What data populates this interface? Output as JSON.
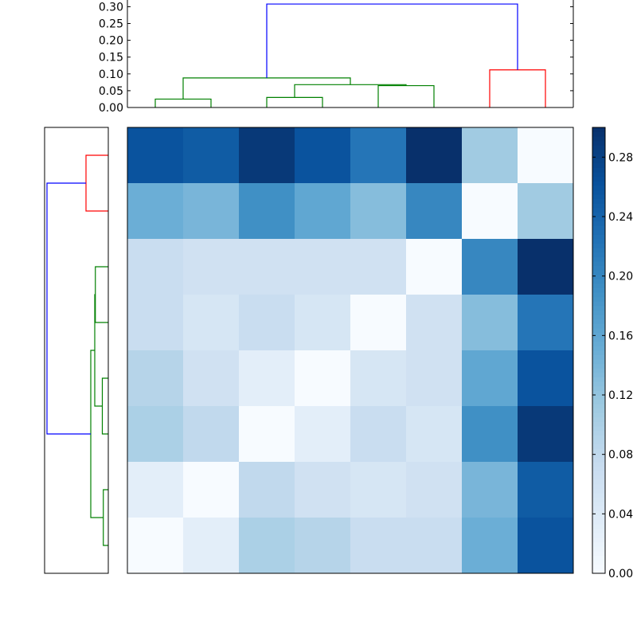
{
  "chart_data": [
    {
      "type": "dendrogram",
      "orientation": "top",
      "yticks": [
        "0.00",
        "0.05",
        "0.10",
        "0.15",
        "0.20",
        "0.25",
        "0.30"
      ],
      "ylim": [
        0,
        0.32
      ],
      "leaf_positions": [
        5,
        15,
        25,
        35,
        45,
        55,
        65,
        75
      ],
      "xlim": [
        0,
        80
      ],
      "links": [
        {
          "x": [
            5,
            5,
            15,
            15
          ],
          "y": [
            0,
            0.025,
            0.025,
            0
          ],
          "color": "#008000"
        },
        {
          "x": [
            25,
            25,
            35,
            35
          ],
          "y": [
            0,
            0.03,
            0.03,
            0
          ],
          "color": "#008000"
        },
        {
          "x": [
            45,
            45,
            55,
            55
          ],
          "y": [
            0,
            0.065,
            0.065,
            0
          ],
          "color": "#008000"
        },
        {
          "x": [
            30,
            30,
            50,
            50
          ],
          "y": [
            0.03,
            0.068,
            0.068,
            0.065
          ],
          "color": "#008000"
        },
        {
          "x": [
            10,
            10,
            40,
            40
          ],
          "y": [
            0.025,
            0.088,
            0.088,
            0.068
          ],
          "color": "#008000"
        },
        {
          "x": [
            65,
            65,
            75,
            75
          ],
          "y": [
            0,
            0.112,
            0.112,
            0
          ],
          "color": "#ff0000"
        },
        {
          "x": [
            25,
            25,
            70,
            70
          ],
          "y": [
            0.088,
            0.308,
            0.308,
            0.112
          ],
          "color": "#0000ff"
        }
      ]
    },
    {
      "type": "dendrogram",
      "orientation": "left",
      "leaf_positions": [
        5,
        15,
        25,
        35,
        45,
        55,
        65,
        75
      ],
      "ylim": [
        0,
        80
      ],
      "xlim": [
        0,
        0.32
      ],
      "links": [
        {
          "y": [
            5,
            5,
            15,
            15
          ],
          "x": [
            0,
            0.025,
            0.025,
            0
          ],
          "color": "#008000"
        },
        {
          "y": [
            25,
            25,
            35,
            35
          ],
          "x": [
            0,
            0.03,
            0.03,
            0
          ],
          "color": "#008000"
        },
        {
          "y": [
            45,
            45,
            55,
            55
          ],
          "x": [
            0,
            0.065,
            0.065,
            0
          ],
          "color": "#008000"
        },
        {
          "y": [
            30,
            30,
            50,
            50
          ],
          "x": [
            0.03,
            0.068,
            0.068,
            0.065
          ],
          "color": "#008000"
        },
        {
          "y": [
            10,
            10,
            40,
            40
          ],
          "x": [
            0.025,
            0.088,
            0.088,
            0.068
          ],
          "color": "#008000"
        },
        {
          "y": [
            65,
            65,
            75,
            75
          ],
          "x": [
            0,
            0.112,
            0.112,
            0
          ],
          "color": "#ff0000"
        },
        {
          "y": [
            25,
            25,
            70,
            70
          ],
          "x": [
            0.088,
            0.308,
            0.308,
            0.112
          ],
          "color": "#0000ff"
        }
      ]
    },
    {
      "type": "heatmap",
      "colormap": "Blues",
      "vmin": 0,
      "vmax": 0.3,
      "values": [
        [
          0.26,
          0.25,
          0.29,
          0.26,
          0.22,
          0.3,
          0.11,
          0.0
        ],
        [
          0.15,
          0.14,
          0.19,
          0.16,
          0.13,
          0.2,
          0.0,
          0.11
        ],
        [
          0.07,
          0.06,
          0.06,
          0.06,
          0.06,
          0.0,
          0.2,
          0.3
        ],
        [
          0.07,
          0.05,
          0.07,
          0.05,
          0.0,
          0.06,
          0.13,
          0.22
        ],
        [
          0.09,
          0.06,
          0.03,
          0.0,
          0.05,
          0.06,
          0.16,
          0.26
        ],
        [
          0.1,
          0.08,
          0.0,
          0.03,
          0.07,
          0.05,
          0.19,
          0.29
        ],
        [
          0.03,
          0.0,
          0.08,
          0.06,
          0.05,
          0.06,
          0.14,
          0.25
        ],
        [
          0.0,
          0.03,
          0.1,
          0.09,
          0.07,
          0.07,
          0.15,
          0.26
        ]
      ]
    },
    {
      "type": "colorbar",
      "colormap": "Blues",
      "vmin": 0,
      "vmax": 0.3,
      "ticks": [
        0,
        0.04,
        0.08,
        0.12,
        0.16,
        0.2,
        0.24,
        0.28
      ],
      "tick_labels": [
        "0.00",
        "0.04",
        "0.08",
        "0.12",
        "0.16",
        "0.20",
        "0.24",
        "0.28"
      ]
    }
  ]
}
